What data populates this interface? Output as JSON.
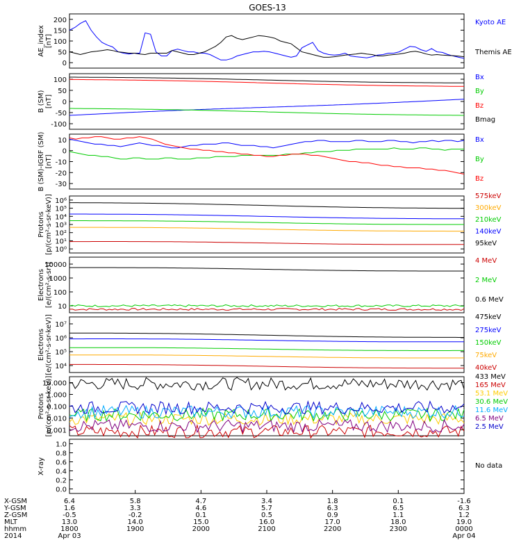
{
  "title": "GOES-13",
  "chart_data": [
    {
      "type": "line",
      "ylabel": "AE_index\n[nT]",
      "yticks": [
        "200",
        "150",
        "100",
        "50",
        "0"
      ],
      "ylim": [
        0,
        200
      ],
      "series": [
        {
          "name": "Kyoto AE",
          "color": "#0000ff",
          "values": [
            140,
            150,
            165,
            175,
            140,
            115,
            95,
            85,
            78,
            60,
            55,
            52,
            55,
            55,
            130,
            125,
            60,
            45,
            45,
            65,
            70,
            65,
            60,
            60,
            55,
            55,
            50,
            40,
            30,
            30,
            35,
            45,
            50,
            55,
            60,
            60,
            62,
            60,
            55,
            50,
            45,
            40,
            45,
            75,
            85,
            95,
            65,
            55,
            50,
            48,
            50,
            55,
            45,
            42,
            40,
            38,
            42,
            48,
            50,
            55,
            55,
            60,
            70,
            80,
            78,
            68,
            62,
            72,
            60,
            58,
            50,
            45,
            40,
            36
          ]
        },
        {
          "name": "Themis AE",
          "color": "#000000",
          "values": [
            60,
            55,
            50,
            55,
            60,
            62,
            65,
            68,
            65,
            60,
            58,
            55,
            55,
            52,
            50,
            55,
            55,
            55,
            55,
            65,
            60,
            55,
            50,
            50,
            55,
            60,
            70,
            80,
            95,
            115,
            120,
            110,
            105,
            110,
            115,
            120,
            118,
            115,
            110,
            100,
            95,
            90,
            75,
            60,
            55,
            50,
            45,
            40,
            40,
            42,
            45,
            48,
            50,
            52,
            55,
            52,
            50,
            45,
            45,
            48,
            50,
            52,
            55,
            60,
            62,
            58,
            52,
            48,
            50,
            48,
            47,
            46,
            44,
            42
          ]
        }
      ]
    },
    {
      "type": "line",
      "ylabel": "B (SM)\n[nT]",
      "yticks": [
        "100",
        "50",
        "0",
        "-50",
        "-100"
      ],
      "ylim": [
        -110,
        130
      ],
      "series": [
        {
          "name": "Bx",
          "color": "#0000ff",
          "start": -50,
          "end": 20
        },
        {
          "name": "By",
          "color": "#00cc00",
          "start": -20,
          "end": -50
        },
        {
          "name": "Bz",
          "color": "#ff0000",
          "start": 105,
          "end": 75
        },
        {
          "name": "Bmag",
          "color": "#000000",
          "start": 115,
          "end": 90
        }
      ]
    },
    {
      "type": "line",
      "ylabel": "B (SM)-IGRF (SM)\n[nT]",
      "yticks": [
        "10",
        "0",
        "-10",
        "-20",
        "-30"
      ],
      "ylim": [
        -32,
        12
      ],
      "series": [
        {
          "name": "Bx",
          "color": "#0000ff",
          "values": [
            8,
            7,
            6,
            5,
            4,
            4,
            3,
            3,
            2,
            3,
            4,
            5,
            4,
            3,
            3,
            2,
            1,
            1,
            2,
            3,
            3,
            4,
            4,
            4,
            5,
            5,
            4,
            3,
            3,
            3,
            2,
            2,
            1,
            2,
            3,
            4,
            5,
            6,
            6,
            7,
            7,
            6,
            6,
            6,
            6,
            7,
            7,
            6,
            6,
            6,
            7,
            7,
            6,
            6,
            5,
            6,
            6,
            7,
            6,
            7,
            7,
            6,
            7
          ]
        },
        {
          "name": "By",
          "color": "#00cc00",
          "values": [
            -2,
            -3,
            -4,
            -5,
            -5,
            -6,
            -6,
            -7,
            -8,
            -8,
            -7,
            -7,
            -8,
            -8,
            -8,
            -7,
            -7,
            -8,
            -8,
            -8,
            -7,
            -7,
            -7,
            -6,
            -6,
            -6,
            -6,
            -5,
            -5,
            -5,
            -5,
            -5,
            -5,
            -5,
            -4,
            -4,
            -4,
            -3,
            -3,
            -2,
            -2,
            -2,
            -1,
            -1,
            -1,
            0,
            0,
            0,
            0,
            0,
            0,
            1,
            0,
            0,
            0,
            1,
            1,
            0,
            0,
            -1,
            0,
            0,
            0
          ]
        },
        {
          "name": "Bz",
          "color": "#ff0000",
          "values": [
            9,
            8,
            9,
            9,
            10,
            10,
            9,
            8,
            8,
            9,
            9,
            10,
            9,
            8,
            6,
            4,
            3,
            2,
            1,
            0,
            0,
            -1,
            -1,
            -2,
            -2,
            -3,
            -3,
            -4,
            -4,
            -5,
            -5,
            -6,
            -6,
            -5,
            -5,
            -4,
            -4,
            -4,
            -5,
            -5,
            -6,
            -7,
            -8,
            -9,
            -10,
            -10,
            -11,
            -11,
            -12,
            -13,
            -13,
            -14,
            -14,
            -15,
            -15,
            -15,
            -16,
            -16,
            -17,
            -17,
            -18,
            -19,
            -20
          ]
        }
      ]
    },
    {
      "type": "line",
      "ylabel": "Protons\n[p/(cm²-s-sr-keV)]",
      "yscale": "log",
      "yticks": [
        "10⁶",
        "10⁵",
        "10⁴",
        "10³",
        "10²",
        "10¹",
        "10⁰"
      ],
      "ylim": [
        0,
        6
      ],
      "series": [
        {
          "name": "575keV",
          "color": "#cc0000",
          "start": 1.2,
          "end": 0.9
        },
        {
          "name": "300keV",
          "color": "#ffaa00",
          "start": 2.7,
          "end": 2.3
        },
        {
          "name": "210keV",
          "color": "#00cc00",
          "start": 3.4,
          "end": 3.0
        },
        {
          "name": "140keV",
          "color": "#0000ff",
          "start": 4.1,
          "end": 3.6
        },
        {
          "name": "95keV",
          "color": "#000000",
          "start": 5.3,
          "end": 4.7
        }
      ]
    },
    {
      "type": "line",
      "ylabel": "Electrons\n[e/(cm²-s-sr)]",
      "yscale": "log",
      "yticks": [
        "10000",
        "1000",
        "100",
        "10"
      ],
      "ylim": [
        0.8,
        4.0
      ],
      "series": [
        {
          "name": "4 MeV",
          "color": "#cc0000",
          "level": 1.0
        },
        {
          "name": "2 MeV",
          "color": "#00cc00",
          "level": 1.2
        },
        {
          "name": "0.6 MeV",
          "color": "#000000",
          "start": 3.4,
          "end": 3.2
        }
      ]
    },
    {
      "type": "line",
      "ylabel": "Electrons\n[e/(cm²-s-sr-keV)]",
      "yscale": "log",
      "yticks": [
        "10⁷",
        "10⁶",
        "10⁵",
        "10⁴"
      ],
      "ylim": [
        3.4,
        7.2
      ],
      "series": [
        {
          "name": "475keV",
          "color": "#000000",
          "start": 6.1,
          "end": 5.8
        },
        {
          "name": "275keV",
          "color": "#0000ff",
          "start": 5.7,
          "end": 5.5
        },
        {
          "name": "150keV",
          "color": "#00cc00",
          "start": 5.1,
          "end": 4.9
        },
        {
          "name": "75keV",
          "color": "#ffaa00",
          "start": 4.6,
          "end": 4.4
        },
        {
          "name": "40keV",
          "color": "#cc0000",
          "start": 3.95,
          "end": 3.7
        }
      ]
    },
    {
      "type": "line",
      "ylabel": "Protons\n[p/(cm²-s-sr-keV)]",
      "yscale": "log",
      "yticks": [
        "10.000",
        "1.000",
        "0.100",
        "0.010",
        "0.001"
      ],
      "ylim": [
        -3.1,
        1.1
      ],
      "series": [
        {
          "name": "433 MeV",
          "color": "#000000",
          "level": 0.6
        },
        {
          "name": "165 MeV",
          "color": "#cc0000",
          "level": -2.8
        },
        {
          "name": "53.1 MeV",
          "color": "#ffcc00",
          "level": -1.9
        },
        {
          "name": "30.6 MeV",
          "color": "#00cc00",
          "level": -1.6
        },
        {
          "name": "11.6 MeV",
          "color": "#00aaff",
          "level": -1.4
        },
        {
          "name": "6.5 MeV",
          "color": "#800080",
          "level": -2.4
        },
        {
          "name": "2.5 MeV",
          "color": "#0000cc",
          "level": -1.1
        }
      ]
    },
    {
      "type": "line",
      "ylabel": "X-ray",
      "yticks": [
        "1.0",
        "0.8",
        "0.6",
        "0.4",
        "0.2",
        "0.0"
      ],
      "ylim": [
        0,
        1
      ],
      "note": "No data",
      "series": []
    }
  ],
  "xaxis": {
    "columns": [
      [
        "6.4",
        "1.6",
        "-0.5",
        "13.0",
        "1800",
        "Apr 03"
      ],
      [
        "5.8",
        "3.3",
        "-0.2",
        "14.0",
        "1900",
        ""
      ],
      [
        "4.7",
        "4.6",
        "0.1",
        "15.0",
        "2000",
        ""
      ],
      [
        "3.4",
        "5.7",
        "0.5",
        "16.0",
        "2100",
        ""
      ],
      [
        "1.8",
        "6.3",
        "0.9",
        "17.0",
        "2200",
        ""
      ],
      [
        "0.1",
        "6.5",
        "1.1",
        "18.0",
        "2300",
        ""
      ],
      [
        "-1.6",
        "6.3",
        "1.2",
        "19.0",
        "0000",
        "Apr 04"
      ]
    ],
    "row_labels": [
      "X-GSM",
      "Y-GSM",
      "Z-GSM",
      "MLT",
      "hhmm",
      "2014"
    ]
  }
}
